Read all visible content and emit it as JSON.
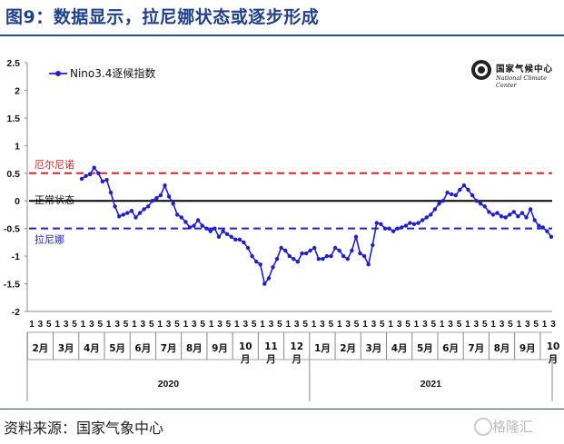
{
  "title": "图9：数据显示，拉尼娜状态或逐步形成",
  "source": "资料来源：国家气象中心",
  "watermark": "格隆汇",
  "logo": {
    "cn": "国家气候中心",
    "en": "National Climate Center"
  },
  "chart_data": {
    "type": "line",
    "ylim": [
      -2,
      2.5
    ],
    "yticks": [
      "2.5",
      "2",
      "1.5",
      "1",
      "0.5",
      "0",
      "-0.5",
      "-1",
      "-1.5",
      "-2"
    ],
    "legend": {
      "label": "Nino3.4逐候指数",
      "position": "top-left"
    },
    "colors": {
      "series": "#1f1fd0",
      "upper": "#e02020",
      "lower": "#2020d0",
      "neutral": "#000000"
    },
    "reference_lines": [
      {
        "name": "厄尔尼诺",
        "y": 0.5
      },
      {
        "name": "正常状态",
        "y": 0
      },
      {
        "name": "拉尼娜",
        "y": -0.5
      }
    ],
    "pentad_labels": [
      "1",
      "3",
      "5",
      "1",
      "3",
      "5",
      "1",
      "3",
      "5",
      "1",
      "3",
      "5",
      "1",
      "3",
      "5",
      "1",
      "3",
      "5",
      "1",
      "3",
      "5",
      "1",
      "3",
      "5",
      "1",
      "3",
      "5",
      "1",
      "3",
      "5",
      "1",
      "3",
      "5",
      "1",
      "3",
      "5",
      "1",
      "3",
      "5",
      "1",
      "3",
      "5",
      "1",
      "3",
      "5",
      "1",
      "3",
      "5",
      "1",
      "3",
      "5",
      "1",
      "3",
      "5",
      "1",
      "3",
      "5",
      "1",
      "3",
      "5",
      "1",
      "3"
    ],
    "months": [
      "2月",
      "3月",
      "4月",
      "5月",
      "6月",
      "7月",
      "8月",
      "9月",
      "10月",
      "11月",
      "12月",
      "1月",
      "2月",
      "3月",
      "4月",
      "5月",
      "6月",
      "7月",
      "8月",
      "9月",
      "10月"
    ],
    "years": [
      "2020",
      "2021"
    ],
    "series": {
      "values": [
        0.4,
        0.45,
        0.48,
        0.6,
        0.5,
        0.35,
        0.38,
        0.15,
        -0.1,
        -0.28,
        -0.25,
        -0.22,
        -0.18,
        -0.3,
        -0.22,
        -0.15,
        -0.1,
        0.0,
        0.05,
        0.1,
        0.28,
        0.08,
        -0.05,
        -0.25,
        -0.3,
        -0.38,
        -0.48,
        -0.45,
        -0.35,
        -0.45,
        -0.5,
        -0.55,
        -0.5,
        -0.65,
        -0.55,
        -0.6,
        -0.65,
        -0.7,
        -0.7,
        -0.75,
        -0.85,
        -1.0,
        -1.1,
        -1.15,
        -1.5,
        -1.4,
        -1.2,
        -1.05,
        -0.85,
        -0.9,
        -1.0,
        -1.05,
        -1.1,
        -0.95,
        -0.95,
        -0.9,
        -0.85,
        -1.05,
        -1.05,
        -1.0,
        -1.0,
        -0.85,
        -0.9,
        -1.0,
        -1.05,
        -0.9,
        -0.65,
        -0.95,
        -1.0,
        -1.15,
        -0.8,
        -0.4,
        -0.42,
        -0.5,
        -0.5,
        -0.55,
        -0.5,
        -0.48,
        -0.45,
        -0.4,
        -0.42,
        -0.4,
        -0.35,
        -0.3,
        -0.25,
        -0.15,
        -0.05,
        0.0,
        0.15,
        0.12,
        0.1,
        0.2,
        0.28,
        0.2,
        0.1,
        0.0,
        -0.05,
        -0.1,
        -0.2,
        -0.25,
        -0.22,
        -0.28,
        -0.3,
        -0.25,
        -0.2,
        -0.28,
        -0.22,
        -0.3,
        -0.15,
        -0.35,
        -0.45,
        -0.48,
        -0.55,
        -0.65
      ]
    }
  }
}
